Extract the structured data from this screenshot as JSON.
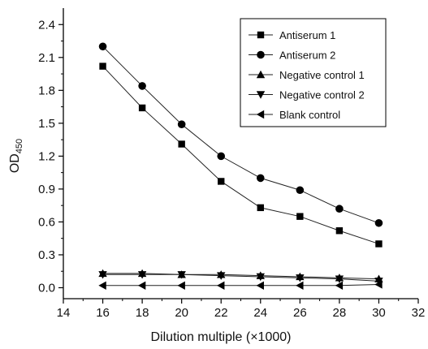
{
  "chart_data": {
    "type": "line",
    "title": "",
    "xlabel": "Dilution multiple (×1000)",
    "ylabel_main": "OD",
    "ylabel_sub": "450",
    "xlim": [
      14,
      32
    ],
    "ylim": [
      -0.1,
      2.55
    ],
    "xticks": [
      14,
      16,
      18,
      20,
      22,
      24,
      26,
      28,
      30,
      32
    ],
    "yticks": [
      "0.0",
      "0.3",
      "0.6",
      "0.9",
      "1.2",
      "1.5",
      "1.8",
      "2.1",
      "2.4"
    ],
    "grid": false,
    "legend_position": "top-right",
    "x": [
      16,
      18,
      20,
      22,
      24,
      26,
      28,
      30
    ],
    "series": [
      {
        "name": "Antiserum 1",
        "marker": "square",
        "values": [
          2.02,
          1.64,
          1.31,
          0.97,
          0.73,
          0.65,
          0.52,
          0.4
        ]
      },
      {
        "name": "Antiserum 2",
        "marker": "circle",
        "values": [
          2.2,
          1.84,
          1.49,
          1.2,
          1.0,
          0.89,
          0.72,
          0.59
        ]
      },
      {
        "name": "Negative control 1",
        "marker": "triangle-up",
        "values": [
          0.13,
          0.13,
          0.12,
          0.12,
          0.11,
          0.1,
          0.09,
          0.08
        ]
      },
      {
        "name": "Negative control 2",
        "marker": "triangle-down",
        "values": [
          0.12,
          0.12,
          0.12,
          0.11,
          0.1,
          0.09,
          0.08,
          0.06
        ]
      },
      {
        "name": "Blank control",
        "marker": "triangle-left",
        "values": [
          0.02,
          0.02,
          0.02,
          0.02,
          0.02,
          0.02,
          0.02,
          0.03
        ]
      }
    ]
  }
}
